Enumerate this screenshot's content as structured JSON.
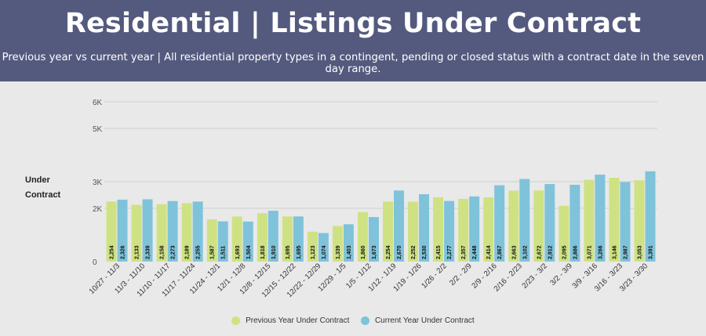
{
  "header": {
    "title": "Residential | Listings Under Contract",
    "subtitle": "Previous year vs current year | All residential property types in a contingent, pending or closed status with a contract date in the seven day range."
  },
  "colors": {
    "banner": "#545a7e",
    "previous": "#cfe283",
    "current": "#7fc3da",
    "grid": "#cfcfcf"
  },
  "chart_data": {
    "type": "bar",
    "ylabel_lines": [
      "Under",
      "Contract"
    ],
    "ylim": [
      0,
      6000
    ],
    "yticks": [
      0,
      2000,
      3000,
      5000,
      6000
    ],
    "ytick_labels": [
      "0",
      "2K",
      "3K",
      "5K",
      "6K"
    ],
    "grid": true,
    "legend_position": "bottom",
    "categories": [
      "10/27 - 11/3",
      "11/3 - 11/10",
      "11/10 - 11/17",
      "11/17 - 11/24",
      "11/24 - 12/1",
      "12/1 - 12/8",
      "12/8 - 12/15",
      "12/15 - 12/22",
      "12/22 - 12/29",
      "12/29 - 1/5",
      "1/5 - 1/12",
      "1/12 - 1/19",
      "1/19 - 1/26",
      "1/26 - 2/2",
      "2/2 - 2/9",
      "2/9 - 2/16",
      "2/16 - 2/23",
      "2/23 - 3/2",
      "3/2 - 3/9",
      "3/9 - 3/16",
      "3/16 - 3/23",
      "3/23 - 3/30"
    ],
    "series": [
      {
        "name": "Previous Year Under Contract",
        "values": [
          2254,
          2133,
          2158,
          2189,
          1587,
          1693,
          1818,
          1695,
          1123,
          1339,
          1860,
          2254,
          2252,
          2415,
          2357,
          2414,
          2663,
          2672,
          2095,
          3071,
          3146,
          3053
        ]
      },
      {
        "name": "Current Year Under Contract",
        "values": [
          2326,
          2339,
          2273,
          2255,
          1511,
          1504,
          1910,
          1695,
          1074,
          1403,
          1673,
          2670,
          2530,
          2277,
          2448,
          2867,
          3102,
          2912,
          2886,
          3266,
          2987,
          3391
        ]
      }
    ],
    "value_labels": [
      [
        "2,254",
        "2,133",
        "2,158",
        "2,189",
        "1,587",
        "1,693",
        "1,818",
        "1,695",
        "1,123",
        "1,339",
        "1,860",
        "2,254",
        "2,252",
        "2,415",
        "2,357",
        "2,414",
        "2,663",
        "2,672",
        "2,095",
        "3,071",
        "3,146",
        "3,053"
      ],
      [
        "2,326",
        "2,339",
        "2,273",
        "2,255",
        "1,511",
        "1,504",
        "1,910",
        "1,695",
        "1,074",
        "1,403",
        "1,673",
        "2,670",
        "2,530",
        "2,277",
        "2,448",
        "2,867",
        "3,102",
        "2,912",
        "2,886",
        "3,266",
        "2,987",
        "3,391"
      ]
    ]
  }
}
